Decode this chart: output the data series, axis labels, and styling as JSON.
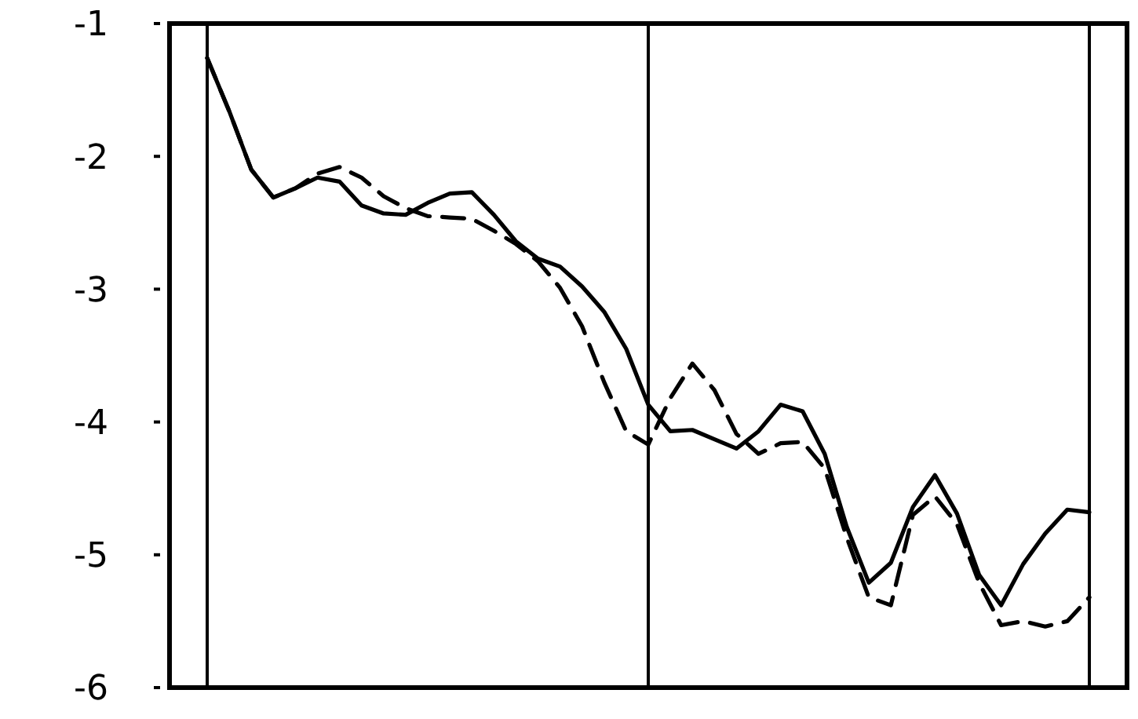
{
  "chart_data": {
    "type": "line",
    "ylim": [
      -6,
      -1
    ],
    "yticks": [
      -6,
      -5,
      -4,
      -3,
      -2,
      -1
    ],
    "tick_labels": "y",
    "grid": "x",
    "categories": [
      null,
      null,
      null,
      null,
      null,
      null,
      null,
      null,
      null,
      null,
      null,
      null,
      null,
      null,
      null,
      null,
      null,
      null,
      null,
      null,
      null,
      null,
      null,
      null,
      null,
      null,
      null,
      null,
      null,
      null,
      null,
      null,
      null,
      null,
      null,
      null,
      null,
      null,
      null,
      null,
      null
    ],
    "series": [
      {
        "color": "#000000",
        "line_style": "solid",
        "values": [
          -1.26,
          -1.66,
          -2.1,
          -2.31,
          -2.24,
          -2.16,
          -2.19,
          -2.37,
          -2.43,
          -2.44,
          -2.35,
          -2.28,
          -2.27,
          -2.44,
          -2.64,
          -2.77,
          -2.83,
          -2.98,
          -3.17,
          -3.45,
          -3.87,
          -4.07,
          -4.06,
          -4.13,
          -4.2,
          -4.07,
          -3.87,
          -3.92,
          -4.24,
          -4.79,
          -5.21,
          -5.06,
          -4.64,
          -4.4,
          -4.69,
          -5.15,
          -5.38,
          -5.07,
          -4.84,
          -4.66,
          -4.68
        ]
      },
      {
        "color": "#000000",
        "line_style": "dashed",
        "values": [
          -1.26,
          -1.66,
          -2.1,
          -2.31,
          -2.24,
          -2.13,
          -2.08,
          -2.16,
          -2.3,
          -2.39,
          -2.45,
          -2.46,
          -2.47,
          -2.56,
          -2.66,
          -2.79,
          -2.99,
          -3.28,
          -3.7,
          -4.07,
          -4.17,
          -3.82,
          -3.56,
          -3.76,
          -4.09,
          -4.24,
          -4.16,
          -4.15,
          -4.35,
          -4.87,
          -5.32,
          -5.38,
          -4.7,
          -4.56,
          -4.77,
          -5.21,
          -5.53,
          -5.5,
          -5.54,
          -5.5,
          -5.32
        ]
      }
    ]
  }
}
